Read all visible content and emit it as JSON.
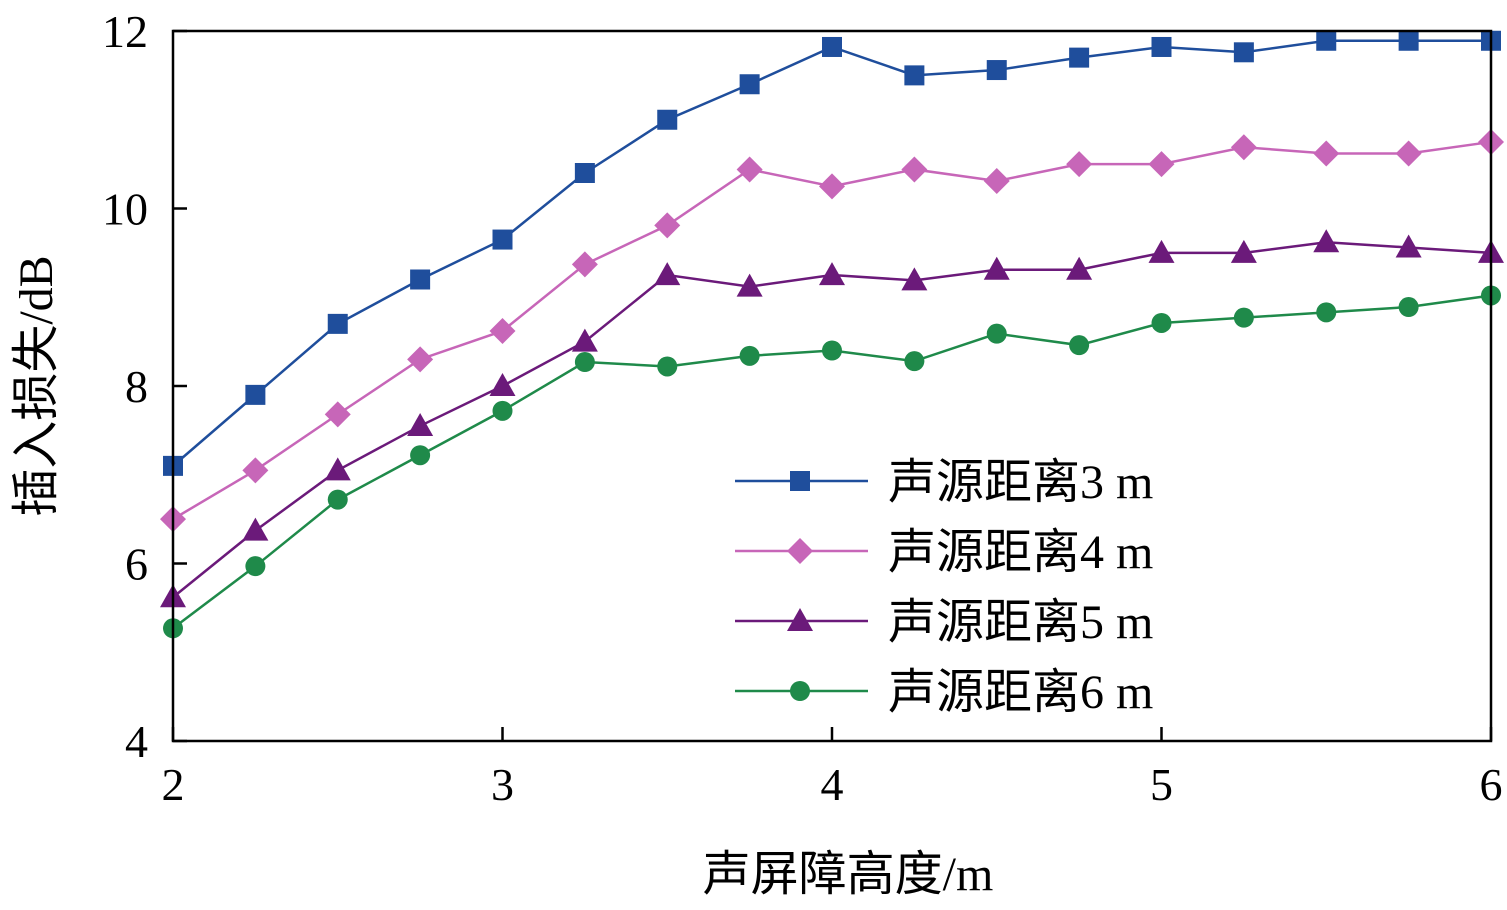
{
  "chart_data": {
    "type": "line",
    "title": "",
    "xlabel": "声屏障高度/m",
    "ylabel": "插入损失/dB",
    "xlim": [
      2,
      6
    ],
    "ylim": [
      4,
      12
    ],
    "xticks": [
      2,
      3,
      4,
      5,
      6
    ],
    "yticks": [
      4,
      6,
      8,
      10,
      12
    ],
    "grid": false,
    "legend_position": "bottom-right",
    "x": [
      2,
      2.25,
      2.5,
      2.75,
      3,
      3.25,
      3.5,
      3.75,
      4,
      4.25,
      4.5,
      4.75,
      5,
      5.25,
      5.5,
      5.75,
      6
    ],
    "series": [
      {
        "name": "声源距离3 m",
        "color": "#1f4e9c",
        "marker": "square",
        "values": [
          7.1,
          7.9,
          8.7,
          9.2,
          9.65,
          10.4,
          11.0,
          11.4,
          11.82,
          11.5,
          11.56,
          11.7,
          11.82,
          11.76,
          11.89,
          11.89,
          11.89
        ]
      },
      {
        "name": "声源距离4 m",
        "color": "#c766b8",
        "marker": "diamond",
        "values": [
          6.5,
          7.05,
          7.68,
          8.3,
          8.62,
          9.37,
          9.81,
          10.44,
          10.25,
          10.44,
          10.31,
          10.5,
          10.5,
          10.69,
          10.62,
          10.62,
          10.75
        ]
      },
      {
        "name": "声源距离5 m",
        "color": "#6b1a7a",
        "marker": "triangle",
        "values": [
          5.62,
          6.37,
          7.05,
          7.55,
          8.0,
          8.5,
          9.25,
          9.12,
          9.25,
          9.19,
          9.31,
          9.31,
          9.5,
          9.5,
          9.62,
          9.56,
          9.5
        ]
      },
      {
        "name": "声源距离6 m",
        "color": "#1f8a4a",
        "marker": "circle",
        "values": [
          5.27,
          5.97,
          6.72,
          7.22,
          7.72,
          8.27,
          8.22,
          8.34,
          8.4,
          8.28,
          8.59,
          8.46,
          8.71,
          8.77,
          8.83,
          8.89,
          9.02
        ]
      }
    ]
  }
}
